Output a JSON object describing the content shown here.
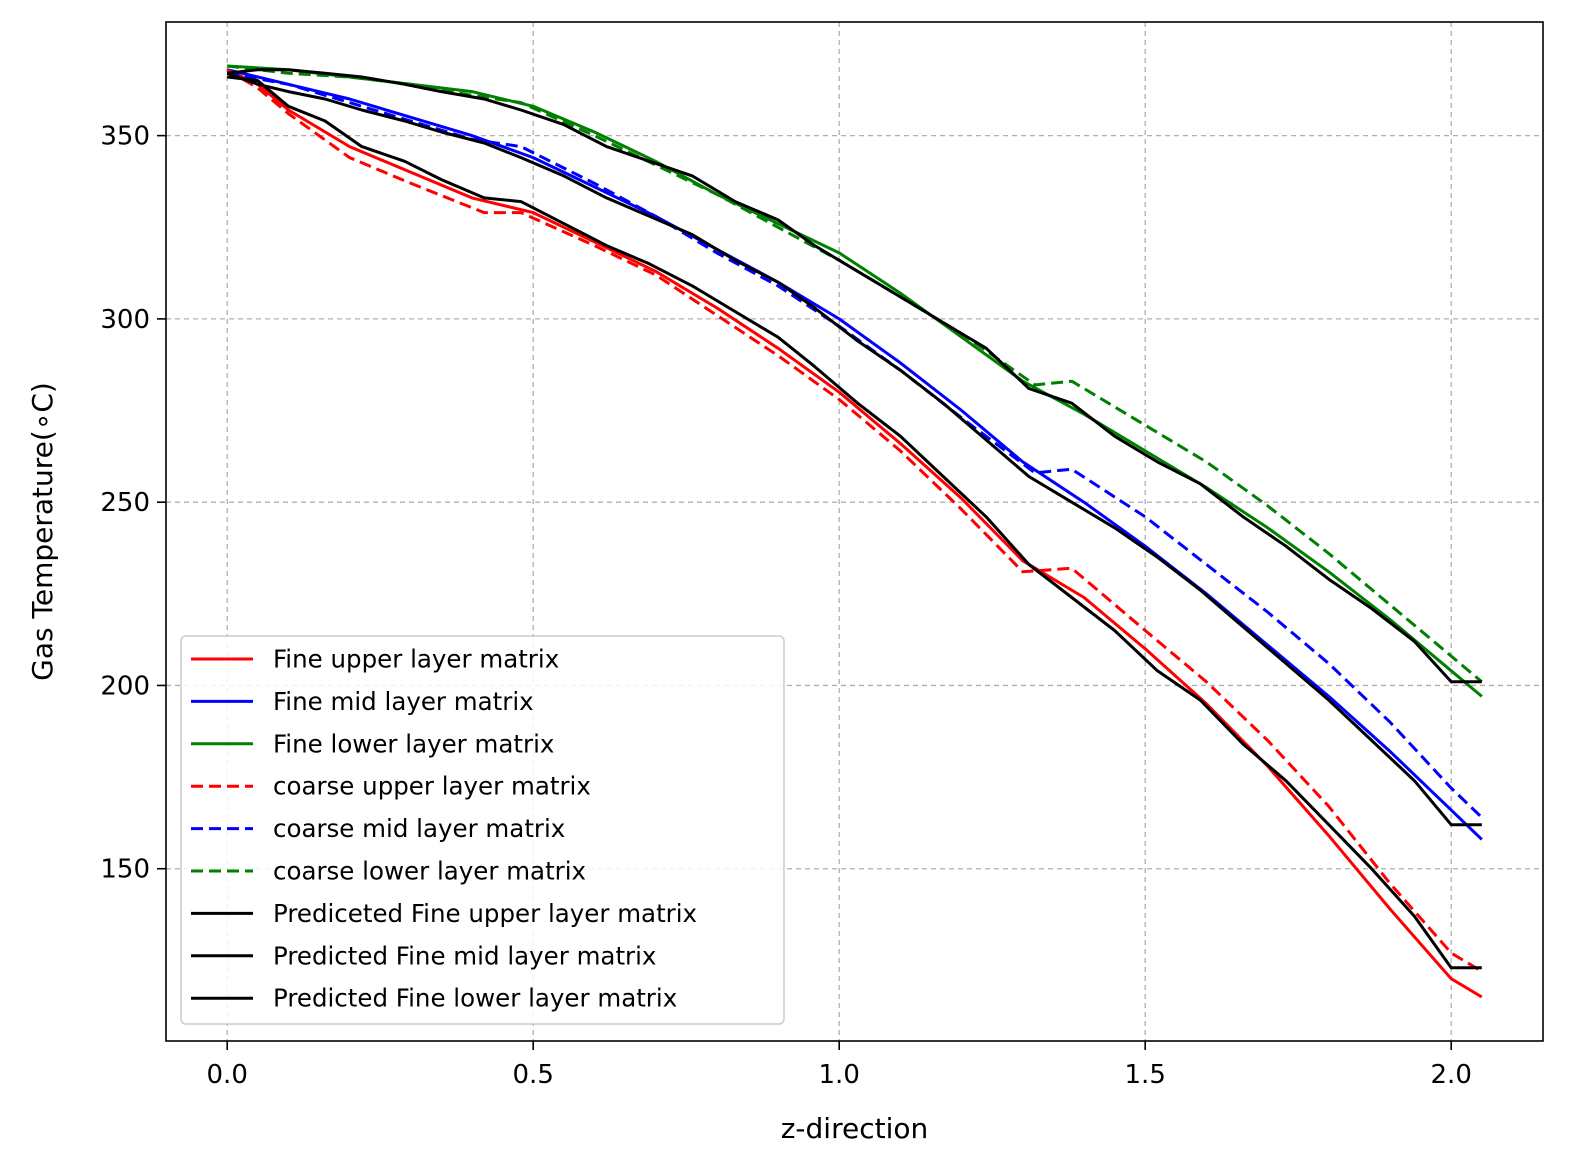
{
  "chart_data": {
    "type": "line",
    "title": "",
    "xlabel": "z-direction",
    "ylabel": "Gas Temperature(∘C)",
    "xlim": [
      -0.1,
      2.15
    ],
    "ylim": [
      103,
      381
    ],
    "grid": true,
    "legend_position": "lower-left",
    "x_ticks": [
      0.0,
      0.5,
      1.0,
      1.5,
      2.0
    ],
    "x_tick_labels": [
      "0.0",
      "0.5",
      "1.0",
      "1.5",
      "2.0"
    ],
    "y_ticks": [
      150,
      200,
      250,
      300,
      350
    ],
    "y_tick_labels": [
      "150",
      "200",
      "250",
      "300",
      "350"
    ],
    "series": [
      {
        "name": "Fine upper layer matrix",
        "color": "#ff0000",
        "dash": "solid",
        "x": [
          0.0,
          0.05,
          0.1,
          0.2,
          0.3,
          0.4,
          0.5,
          0.6,
          0.7,
          0.8,
          0.9,
          1.0,
          1.1,
          1.2,
          1.3,
          1.4,
          1.5,
          1.6,
          1.7,
          1.8,
          1.9,
          2.0,
          2.05
        ],
        "y": [
          368,
          364,
          357,
          347,
          340,
          333,
          329,
          321,
          313,
          303,
          292,
          280,
          266,
          251,
          234,
          224,
          210,
          195,
          178,
          159,
          139,
          120,
          115
        ]
      },
      {
        "name": "Fine mid layer matrix",
        "color": "#0000ff",
        "dash": "solid",
        "x": [
          0.0,
          0.1,
          0.2,
          0.3,
          0.4,
          0.5,
          0.6,
          0.7,
          0.8,
          0.9,
          1.0,
          1.1,
          1.2,
          1.3,
          1.4,
          1.5,
          1.6,
          1.7,
          1.8,
          1.9,
          2.0,
          2.05
        ],
        "y": [
          368,
          364,
          360,
          355,
          350,
          344,
          336,
          328,
          319,
          310,
          300,
          288,
          275,
          261,
          250,
          238,
          225,
          211,
          197,
          182,
          166,
          158
        ]
      },
      {
        "name": "Fine lower layer matrix",
        "color": "#008000",
        "dash": "solid",
        "x": [
          0.0,
          0.1,
          0.2,
          0.3,
          0.4,
          0.5,
          0.6,
          0.7,
          0.8,
          0.9,
          1.0,
          1.1,
          1.2,
          1.3,
          1.4,
          1.5,
          1.6,
          1.7,
          1.8,
          1.9,
          2.0,
          2.05
        ],
        "y": [
          369,
          368,
          366,
          364,
          362,
          358,
          351,
          343,
          334,
          326,
          318,
          307,
          295,
          283,
          274,
          264,
          254,
          243,
          231,
          218,
          204,
          197
        ]
      },
      {
        "name": "coarse upper layer matrix",
        "color": "#ff0000",
        "dash": "dashed",
        "x": [
          0.0,
          0.05,
          0.1,
          0.2,
          0.3,
          0.42,
          0.48,
          0.6,
          0.7,
          0.8,
          0.9,
          1.0,
          1.1,
          1.2,
          1.3,
          1.38,
          1.5,
          1.6,
          1.7,
          1.8,
          1.9,
          2.0,
          2.05
        ],
        "y": [
          368,
          363,
          356,
          344,
          337,
          329,
          329,
          320,
          312,
          301,
          290,
          278,
          264,
          248,
          231,
          232,
          215,
          201,
          185,
          167,
          146,
          127,
          122
        ]
      },
      {
        "name": "coarse mid layer matrix",
        "color": "#0000ff",
        "dash": "dashed",
        "x": [
          0.0,
          0.1,
          0.2,
          0.3,
          0.4,
          0.48,
          0.6,
          0.7,
          0.8,
          0.9,
          1.0,
          1.1,
          1.2,
          1.32,
          1.38,
          1.5,
          1.6,
          1.7,
          1.8,
          1.9,
          2.0,
          2.05
        ],
        "y": [
          367,
          364,
          359,
          354,
          349,
          347,
          337,
          328,
          318,
          309,
          298,
          286,
          273,
          258,
          259,
          246,
          233,
          220,
          206,
          190,
          172,
          164
        ]
      },
      {
        "name": "coarse lower layer matrix",
        "color": "#008000",
        "dash": "dashed",
        "x": [
          0.0,
          0.1,
          0.2,
          0.3,
          0.4,
          0.48,
          0.6,
          0.7,
          0.8,
          0.9,
          1.0,
          1.1,
          1.2,
          1.32,
          1.38,
          1.5,
          1.6,
          1.7,
          1.8,
          1.9,
          2.0,
          2.05
        ],
        "y": [
          369,
          367,
          366,
          364,
          361,
          359,
          350,
          342,
          334,
          325,
          316,
          306,
          296,
          282,
          283,
          271,
          261,
          249,
          236,
          222,
          208,
          201
        ]
      },
      {
        "name": "Prediceted Fine upper layer matrix",
        "color": "#000000",
        "dash": "solid",
        "x": [
          0.0,
          0.05,
          0.1,
          0.16,
          0.22,
          0.29,
          0.35,
          0.42,
          0.48,
          0.55,
          0.62,
          0.69,
          0.76,
          0.83,
          0.9,
          0.96,
          1.03,
          1.1,
          1.17,
          1.24,
          1.31,
          1.38,
          1.45,
          1.52,
          1.59,
          1.66,
          1.73,
          1.8,
          1.87,
          1.94,
          2.0,
          2.05
        ],
        "y": [
          366,
          365,
          358,
          354,
          347,
          343,
          338,
          333,
          332,
          326,
          320,
          315,
          309,
          302,
          295,
          287,
          277,
          268,
          257,
          246,
          233,
          224,
          215,
          204,
          196,
          184,
          174,
          162,
          150,
          137,
          123,
          123
        ]
      },
      {
        "name": "Predicted Fine mid layer matrix",
        "color": "#000000",
        "dash": "solid",
        "x": [
          0.0,
          0.05,
          0.1,
          0.16,
          0.22,
          0.29,
          0.35,
          0.42,
          0.48,
          0.55,
          0.62,
          0.69,
          0.76,
          0.83,
          0.9,
          0.96,
          1.03,
          1.1,
          1.17,
          1.24,
          1.31,
          1.38,
          1.45,
          1.52,
          1.59,
          1.66,
          1.73,
          1.8,
          1.87,
          1.94,
          2.0,
          2.05
        ],
        "y": [
          367,
          364,
          362,
          360,
          357,
          354,
          351,
          348,
          344,
          339,
          333,
          328,
          323,
          316,
          310,
          303,
          294,
          286,
          277,
          267,
          257,
          250,
          243,
          235,
          226,
          216,
          206,
          196,
          185,
          174,
          162,
          162
        ]
      },
      {
        "name": "Predicted Fine lower layer matrix",
        "color": "#000000",
        "dash": "solid",
        "x": [
          0.0,
          0.05,
          0.1,
          0.16,
          0.22,
          0.29,
          0.35,
          0.42,
          0.48,
          0.55,
          0.62,
          0.69,
          0.76,
          0.83,
          0.9,
          0.96,
          1.03,
          1.1,
          1.17,
          1.24,
          1.31,
          1.38,
          1.45,
          1.52,
          1.59,
          1.66,
          1.73,
          1.8,
          1.87,
          1.94,
          2.0,
          2.05
        ],
        "y": [
          367,
          368,
          368,
          367,
          366,
          364,
          362,
          360,
          357,
          353,
          347,
          343,
          339,
          332,
          327,
          320,
          313,
          306,
          299,
          292,
          281,
          277,
          268,
          261,
          255,
          246,
          238,
          229,
          221,
          212,
          201,
          201
        ]
      }
    ]
  }
}
